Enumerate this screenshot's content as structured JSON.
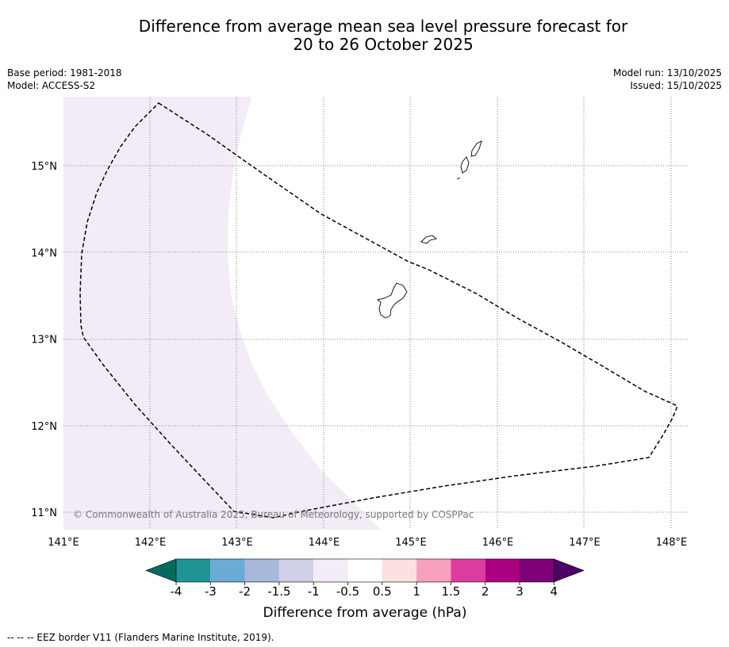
{
  "header": {
    "title_line1": "Difference from average mean sea level pressure forecast for",
    "title_line2": "20 to 26 October 2025",
    "base_period": "Base period: 1981-2018",
    "model": "Model: ACCESS-S2",
    "model_run": "Model run: 13/10/2025",
    "issued": "Issued: 15/10/2025"
  },
  "map": {
    "lon_range": [
      141.0,
      148.2
    ],
    "lat_range": [
      10.8,
      15.8
    ],
    "lon_labels": [
      "141°E",
      "142°E",
      "143°E",
      "144°E",
      "145°E",
      "146°E",
      "147°E",
      "148°E"
    ],
    "lat_labels": [
      "11°N",
      "12°N",
      "13°N",
      "14°N",
      "15°N"
    ],
    "copyright": "© Commonwealth of Australia 2025, Bureau of Meteorology, supported by COSPPac"
  },
  "colorbar": {
    "ticks": [
      "-4",
      "-3",
      "-2",
      "-1.5",
      "-1",
      "-0.5",
      "0.5",
      "1",
      "1.5",
      "2",
      "3",
      "4"
    ],
    "low_extend_color": "#006b5e",
    "high_extend_color": "#4d0065",
    "colors": [
      "#1e9497",
      "#6aaad4",
      "#a7b8da",
      "#d0d0e8",
      "#f3ecf6",
      "#ffffff",
      "#fde0e0",
      "#f7a1bd",
      "#dc3c9e",
      "#ab0080",
      "#7d0078"
    ],
    "label": "Difference from average (hPa)"
  },
  "legend": {
    "eez_text": "--  --  -- EEZ border V11 (Flanders Marine Institute, 2019)."
  },
  "colors": {
    "shading_minus_0_5": "#f3ecf6",
    "grid": "#666666"
  }
}
